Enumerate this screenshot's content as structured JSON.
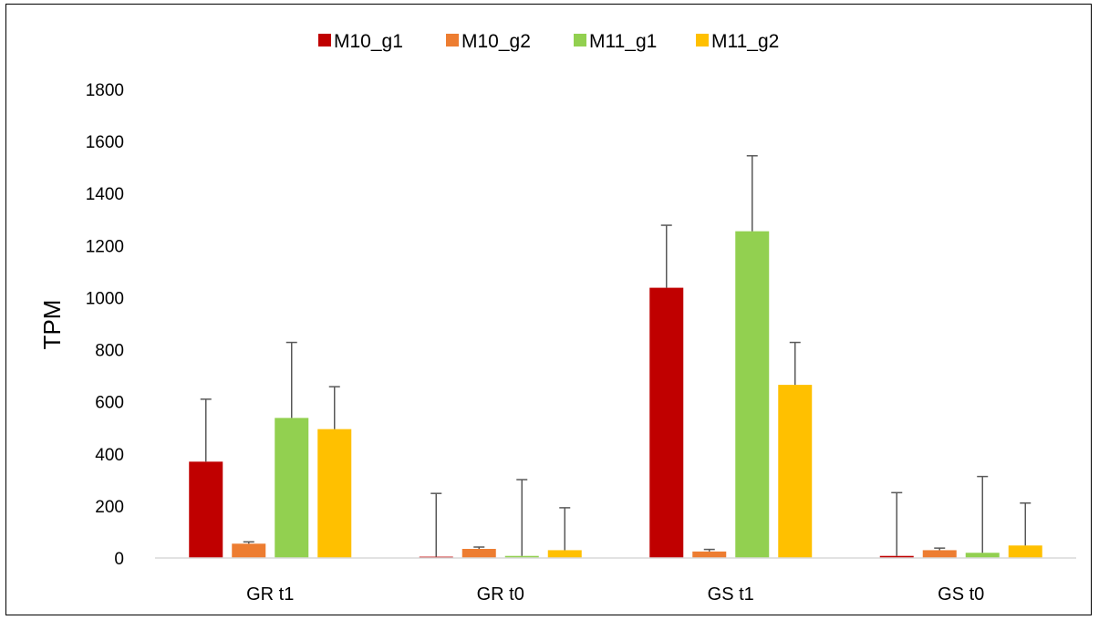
{
  "chart_data": {
    "type": "bar",
    "title": "",
    "xlabel": "",
    "ylabel": "TPM",
    "ylim": [
      0,
      1800
    ],
    "yticks": [
      0,
      200,
      400,
      600,
      800,
      1000,
      1200,
      1400,
      1600,
      1800
    ],
    "grid": false,
    "legend_position": "top",
    "categories": [
      "GR t1",
      "GR t0",
      "GS t1",
      "GS t0"
    ],
    "series": [
      {
        "name": "M10_g1",
        "color": "#c00000",
        "values": [
          370,
          5,
          1038,
          8
        ],
        "error": [
          240,
          243,
          240,
          243
        ]
      },
      {
        "name": "M10_g2",
        "color": "#ed7d31",
        "values": [
          55,
          35,
          25,
          30
        ],
        "error": [
          7,
          7,
          8,
          8
        ]
      },
      {
        "name": "M11_g1",
        "color": "#92d050",
        "values": [
          538,
          8,
          1255,
          20
        ],
        "error": [
          290,
          293,
          290,
          293
        ]
      },
      {
        "name": "M11_g2",
        "color": "#ffc000",
        "values": [
          495,
          30,
          665,
          48
        ],
        "error": [
          163,
          163,
          163,
          163
        ]
      }
    ]
  }
}
